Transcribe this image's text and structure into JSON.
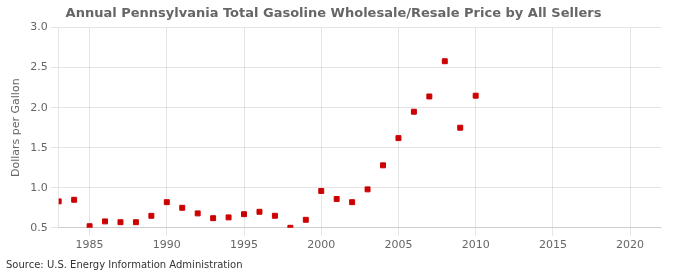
{
  "chart_data": {
    "type": "scatter",
    "title": "Annual Pennsylvania Total Gasoline Wholesale/Resale Price by All Sellers",
    "ylabel": "Dollars per Gallon",
    "annotations": [
      "Source: U.S. Energy Information Administration"
    ],
    "x": [
      1983,
      1984,
      1985,
      1986,
      1987,
      1988,
      1989,
      1990,
      1991,
      1992,
      1993,
      1994,
      1995,
      1996,
      1997,
      1998,
      1999,
      2000,
      2001,
      2002,
      2003,
      2004,
      2005,
      2006,
      2007,
      2008,
      2009,
      2010
    ],
    "values": [
      0.83,
      0.85,
      0.52,
      0.58,
      0.57,
      0.57,
      0.65,
      0.82,
      0.75,
      0.68,
      0.62,
      0.63,
      0.67,
      0.7,
      0.65,
      0.5,
      0.6,
      0.96,
      0.86,
      0.82,
      0.98,
      1.28,
      1.62,
      1.95,
      2.14,
      2.58,
      1.75,
      2.15
    ],
    "color": "#cc0000",
    "marker": "square",
    "xlim": [
      1983,
      2022
    ],
    "ylim": [
      0.5,
      3.0
    ],
    "xticks": [
      1985,
      1990,
      1995,
      2000,
      2005,
      2010,
      2015,
      2020
    ],
    "yticks": [
      0.5,
      {
        "value": 1.0,
        "label": "1.0"
      },
      1.5,
      {
        "value": 2.0,
        "label": "2.0"
      },
      2.5,
      {
        "value": 3.0,
        "label": "3.0"
      }
    ],
    "grid": true
  }
}
